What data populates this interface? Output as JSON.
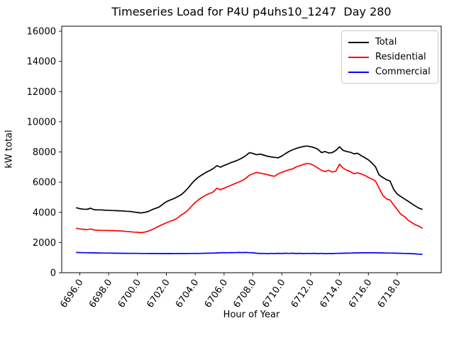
{
  "title": "Timeseries Load for P4U p4uhs10_1247  Day 280",
  "chart_data": {
    "type": "line",
    "title": "Timeseries Load for P4U p4uhs10_1247  Day 280",
    "xlabel": "Hour of Year",
    "ylabel": "kW total",
    "xlim": [
      6694.75,
      6721.05
    ],
    "ylim": [
      0,
      16330
    ],
    "grid": false,
    "legend_position": "upper right",
    "x_ticks": [
      6696,
      6698,
      6700,
      6702,
      6704,
      6706,
      6708,
      6710,
      6712,
      6714,
      6716,
      6718
    ],
    "x_tick_labels": [
      "6696.0",
      "6698.0",
      "6700.0",
      "6702.0",
      "6704.0",
      "6706.0",
      "6708.0",
      "6710.0",
      "6712.0",
      "6714.0",
      "6716.0",
      "6718.0"
    ],
    "y_ticks": [
      0,
      2000,
      4000,
      6000,
      8000,
      10000,
      12000,
      14000,
      16000
    ],
    "y_tick_labels": [
      "0",
      "2000",
      "4000",
      "6000",
      "8000",
      "10000",
      "12000",
      "14000",
      "16000"
    ],
    "x": [
      6695.75,
      6696,
      6696.25,
      6696.5,
      6696.75,
      6697,
      6697.25,
      6697.5,
      6697.75,
      6698,
      6698.25,
      6698.5,
      6698.75,
      6699,
      6699.25,
      6699.5,
      6699.75,
      6700,
      6700.25,
      6700.5,
      6700.75,
      6701,
      6701.25,
      6701.5,
      6701.75,
      6702,
      6702.25,
      6702.5,
      6702.75,
      6703,
      6703.25,
      6703.5,
      6703.75,
      6704,
      6704.25,
      6704.5,
      6704.75,
      6705,
      6705.25,
      6705.5,
      6705.75,
      6706,
      6706.25,
      6706.5,
      6706.75,
      6707,
      6707.25,
      6707.5,
      6707.75,
      6708,
      6708.25,
      6708.5,
      6708.75,
      6709,
      6709.25,
      6709.5,
      6709.75,
      6710,
      6710.25,
      6710.5,
      6710.75,
      6711,
      6711.25,
      6711.5,
      6711.75,
      6712,
      6712.25,
      6712.5,
      6712.75,
      6713,
      6713.25,
      6713.5,
      6713.75,
      6714,
      6714.25,
      6714.5,
      6714.75,
      6715,
      6715.25,
      6715.5,
      6715.75,
      6716,
      6716.25,
      6716.5,
      6716.75,
      6717,
      6717.25,
      6717.5,
      6717.75,
      6718,
      6718.25,
      6718.5,
      6718.75,
      6719,
      6719.25,
      6719.5,
      6719.75
    ],
    "series": [
      {
        "name": "Total",
        "color": "#000000",
        "values": [
          4310,
          4240,
          4210,
          4200,
          4270,
          4170,
          4160,
          4160,
          4140,
          4140,
          4120,
          4110,
          4100,
          4090,
          4070,
          4060,
          4020,
          3990,
          3960,
          4000,
          4060,
          4170,
          4260,
          4350,
          4540,
          4700,
          4810,
          4900,
          5020,
          5150,
          5350,
          5600,
          5900,
          6150,
          6350,
          6500,
          6650,
          6760,
          6900,
          7090,
          6990,
          7100,
          7200,
          7300,
          7380,
          7480,
          7600,
          7750,
          7950,
          7900,
          7820,
          7860,
          7790,
          7720,
          7670,
          7640,
          7610,
          7730,
          7890,
          8030,
          8140,
          8230,
          8300,
          8360,
          8390,
          8350,
          8280,
          8180,
          7960,
          8030,
          7930,
          7960,
          8100,
          8340,
          8110,
          8030,
          7980,
          7880,
          7910,
          7760,
          7620,
          7480,
          7260,
          7010,
          6470,
          6310,
          6160,
          6080,
          5530,
          5210,
          5050,
          4890,
          4740,
          4580,
          4420,
          4280,
          4190
        ]
      },
      {
        "name": "Residential",
        "color": "#ff0000",
        "values": [
          2950,
          2900,
          2880,
          2850,
          2900,
          2830,
          2810,
          2800,
          2800,
          2790,
          2790,
          2780,
          2770,
          2760,
          2730,
          2710,
          2690,
          2680,
          2650,
          2690,
          2760,
          2850,
          2970,
          3090,
          3200,
          3310,
          3400,
          3480,
          3610,
          3800,
          3950,
          4150,
          4400,
          4650,
          4850,
          5000,
          5150,
          5250,
          5350,
          5600,
          5500,
          5600,
          5700,
          5800,
          5900,
          6000,
          6100,
          6250,
          6450,
          6550,
          6650,
          6600,
          6550,
          6500,
          6430,
          6390,
          6550,
          6650,
          6740,
          6820,
          6880,
          7010,
          7090,
          7170,
          7240,
          7200,
          7090,
          6930,
          6790,
          6700,
          6780,
          6670,
          6730,
          7190,
          6930,
          6790,
          6700,
          6550,
          6620,
          6540,
          6450,
          6310,
          6200,
          6070,
          5600,
          5130,
          4890,
          4820,
          4500,
          4190,
          3870,
          3720,
          3480,
          3330,
          3170,
          3090,
          2930
        ]
      },
      {
        "name": "Commercial",
        "color": "#0000ff",
        "values": [
          1340,
          1335,
          1330,
          1325,
          1320,
          1315,
          1310,
          1305,
          1300,
          1300,
          1295,
          1290,
          1290,
          1285,
          1285,
          1280,
          1280,
          1280,
          1275,
          1275,
          1270,
          1270,
          1270,
          1265,
          1270,
          1265,
          1270,
          1265,
          1270,
          1270,
          1265,
          1270,
          1275,
          1280,
          1275,
          1285,
          1290,
          1295,
          1300,
          1310,
          1320,
          1330,
          1325,
          1335,
          1330,
          1340,
          1335,
          1340,
          1330,
          1320,
          1290,
          1270,
          1280,
          1260,
          1280,
          1265,
          1285,
          1270,
          1290,
          1275,
          1290,
          1270,
          1285,
          1265,
          1280,
          1270,
          1285,
          1265,
          1280,
          1260,
          1275,
          1265,
          1280,
          1285,
          1290,
          1295,
          1300,
          1310,
          1315,
          1320,
          1320,
          1325,
          1320,
          1320,
          1315,
          1310,
          1305,
          1300,
          1295,
          1290,
          1285,
          1275,
          1270,
          1260,
          1250,
          1230,
          1210
        ]
      }
    ]
  }
}
